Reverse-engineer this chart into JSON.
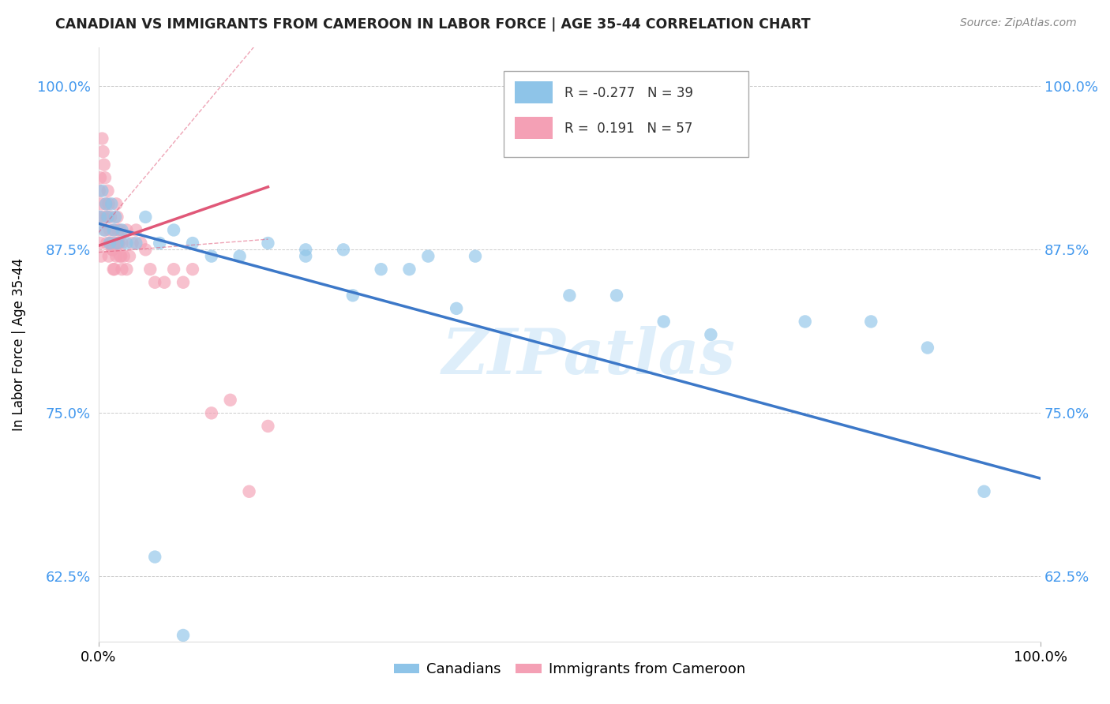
{
  "title": "CANADIAN VS IMMIGRANTS FROM CAMEROON IN LABOR FORCE | AGE 35-44 CORRELATION CHART",
  "source": "Source: ZipAtlas.com",
  "ylabel": "In Labor Force | Age 35-44",
  "xlim": [
    0.0,
    1.0
  ],
  "ylim": [
    0.575,
    1.03
  ],
  "yticks": [
    0.625,
    0.75,
    0.875,
    1.0
  ],
  "ytick_labels": [
    "62.5%",
    "75.0%",
    "87.5%",
    "100.0%"
  ],
  "xtick_labels": [
    "0.0%",
    "100.0%"
  ],
  "xticks": [
    0.0,
    1.0
  ],
  "legend_r_canadian": "-0.277",
  "legend_n_canadian": "39",
  "legend_r_cameroon": "0.191",
  "legend_n_cameroon": "57",
  "canadian_color": "#8ec4e8",
  "cameroon_color": "#f4a0b5",
  "canadian_line_color": "#3c78c8",
  "cameroon_line_color": "#e05878",
  "watermark": "ZIPatlas",
  "background_color": "#ffffff",
  "can_x": [
    0.002,
    0.004,
    0.006,
    0.008,
    0.01,
    0.012,
    0.014,
    0.016,
    0.018,
    0.02,
    0.025,
    0.03,
    0.04,
    0.05,
    0.065,
    0.08,
    0.1,
    0.12,
    0.15,
    0.18,
    0.22,
    0.26,
    0.3,
    0.35,
    0.4,
    0.22,
    0.27,
    0.33,
    0.38,
    0.5,
    0.55,
    0.6,
    0.65,
    0.75,
    0.82,
    0.88,
    0.94,
    0.06,
    0.09
  ],
  "can_y": [
    0.9,
    0.92,
    0.89,
    0.91,
    0.9,
    0.88,
    0.91,
    0.89,
    0.9,
    0.88,
    0.89,
    0.88,
    0.88,
    0.9,
    0.88,
    0.89,
    0.88,
    0.87,
    0.87,
    0.88,
    0.875,
    0.875,
    0.86,
    0.87,
    0.87,
    0.87,
    0.84,
    0.86,
    0.83,
    0.84,
    0.84,
    0.82,
    0.81,
    0.82,
    0.82,
    0.8,
    0.69,
    0.64,
    0.58
  ],
  "cam_x": [
    0.0,
    0.001,
    0.002,
    0.003,
    0.004,
    0.005,
    0.006,
    0.007,
    0.008,
    0.009,
    0.01,
    0.011,
    0.012,
    0.013,
    0.014,
    0.015,
    0.016,
    0.017,
    0.018,
    0.019,
    0.02,
    0.021,
    0.022,
    0.023,
    0.024,
    0.025,
    0.027,
    0.03,
    0.033,
    0.036,
    0.04,
    0.045,
    0.05,
    0.055,
    0.06,
    0.07,
    0.08,
    0.09,
    0.1,
    0.12,
    0.14,
    0.16,
    0.18,
    0.002,
    0.003,
    0.005,
    0.007,
    0.009,
    0.011,
    0.013,
    0.015,
    0.017,
    0.019,
    0.021,
    0.023,
    0.025,
    0.03
  ],
  "cam_y": [
    0.9,
    0.92,
    0.93,
    0.91,
    0.96,
    0.95,
    0.94,
    0.93,
    0.91,
    0.9,
    0.92,
    0.91,
    0.89,
    0.9,
    0.88,
    0.875,
    0.86,
    0.89,
    0.88,
    0.91,
    0.9,
    0.89,
    0.88,
    0.89,
    0.87,
    0.86,
    0.87,
    0.86,
    0.87,
    0.88,
    0.89,
    0.88,
    0.875,
    0.86,
    0.85,
    0.85,
    0.86,
    0.85,
    0.86,
    0.75,
    0.76,
    0.69,
    0.74,
    0.88,
    0.87,
    0.9,
    0.89,
    0.88,
    0.87,
    0.88,
    0.875,
    0.86,
    0.87,
    0.88,
    0.87,
    0.88,
    0.89
  ]
}
